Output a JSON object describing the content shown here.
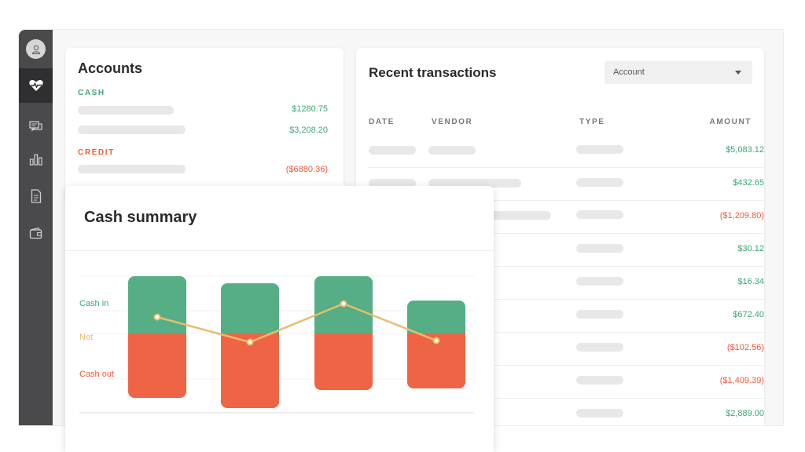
{
  "sidebar": {
    "icons": [
      "user-icon",
      "heartbeat-icon",
      "chat-icon",
      "bar-chart-icon",
      "document-icon",
      "wallet-icon"
    ]
  },
  "accounts": {
    "title": "Accounts",
    "cash_label": "CASH",
    "cash_amounts": [
      "$1280.75",
      "$3,208.20"
    ],
    "credit_label": "CREDIT",
    "credit_amounts": [
      "($6880.36)"
    ]
  },
  "transactions": {
    "title": "Recent transactions",
    "account_select": "Account",
    "headers": {
      "date": "DATE",
      "vendor": "VENDOR",
      "type": "TYPE",
      "amount": "AMOUNT"
    },
    "amounts": [
      "$5,083.12",
      "$432.65",
      "($1,209.80)",
      "$30.12",
      "$16.34",
      "$672.40",
      "($102.56)",
      "($1,409.39)",
      "$2,889.00"
    ]
  },
  "cash_summary": {
    "title": "Cash summary",
    "legend": {
      "cash_in": "Cash in",
      "net": "Net",
      "cash_out": "Cash out"
    }
  },
  "colors": {
    "sidebar": "#4a4a4c",
    "positive": "#3aa876",
    "negative": "#ef5a3c",
    "cash_in": "#55ae86",
    "cash_out": "#ef6444",
    "net": "#e8bd6d"
  },
  "chart_data": {
    "type": "bar",
    "categories": [
      "",
      "",
      "",
      ""
    ],
    "series": [
      {
        "name": "Cash in",
        "values": [
          73,
          64,
          73,
          42
        ]
      },
      {
        "name": "Cash out",
        "values": [
          -82,
          -95,
          -72,
          -70
        ]
      },
      {
        "name": "Net",
        "values": [
          21,
          -11,
          38,
          -9
        ]
      }
    ],
    "ylim": [
      -100,
      85
    ]
  }
}
